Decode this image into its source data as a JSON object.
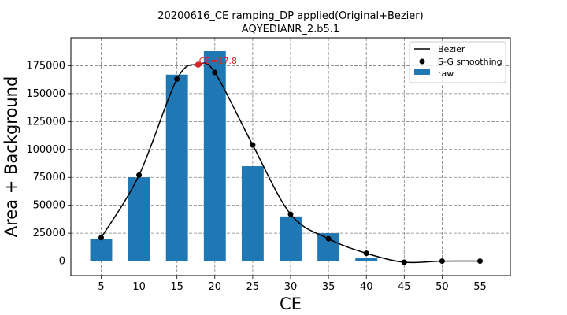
{
  "chart_data": {
    "type": "bar",
    "title": "20200616_CE ramping_DP applied(Original+Bezier)",
    "subtitle": "AQYEDIANR_2.b5.1",
    "xlabel": "CE",
    "ylabel": "Area + Background",
    "x_ticks": [
      5,
      10,
      15,
      20,
      25,
      30,
      35,
      40,
      45,
      50,
      55
    ],
    "y_ticks": [
      0,
      25000,
      50000,
      75000,
      100000,
      125000,
      150000,
      175000
    ],
    "xlim": [
      1,
      59
    ],
    "ylim": [
      -13000,
      200000
    ],
    "grid": true,
    "legend_position": "top-right",
    "series": [
      {
        "name": "raw",
        "kind": "bar",
        "color": "#1f77b4",
        "x": [
          5,
          10,
          15,
          20,
          25,
          30,
          35,
          40
        ],
        "values": [
          20000,
          75000,
          167000,
          188000,
          85000,
          40000,
          25000,
          2500
        ]
      },
      {
        "name": "S-G smoothing",
        "kind": "scatter",
        "color": "#000000",
        "x": [
          5,
          10,
          15,
          20,
          25,
          30,
          35,
          40,
          45,
          50,
          55
        ],
        "values": [
          21000,
          77000,
          163000,
          169000,
          104000,
          42000,
          20000,
          7000,
          -1000,
          0,
          0
        ]
      },
      {
        "name": "Bezier",
        "kind": "line",
        "color": "#000000",
        "x": [
          5,
          10,
          15,
          17.8,
          20,
          25,
          30,
          35,
          40,
          45,
          50,
          55
        ],
        "values": [
          21000,
          77000,
          163000,
          176000,
          169000,
          104000,
          42000,
          20000,
          7000,
          -1000,
          0,
          0
        ]
      }
    ],
    "annotation": {
      "text": "CE=17.8",
      "x": 17.8,
      "y": 176000,
      "color": "#d62728"
    }
  }
}
